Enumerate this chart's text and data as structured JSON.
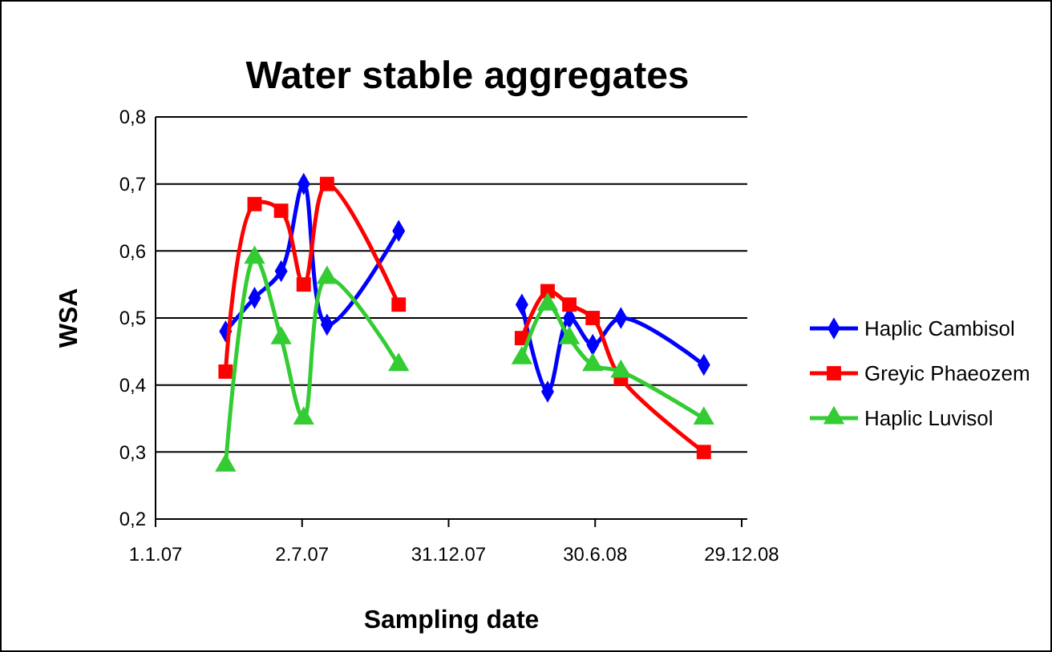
{
  "chart_data": {
    "type": "line",
    "title": "Water stable aggregates",
    "xlabel": "Sampling date",
    "ylabel": "WSA",
    "x": [
      "2007-03-29",
      "2007-05-04",
      "2007-06-06",
      "2007-07-04",
      "2007-08-02",
      "2007-10-30",
      "2008-01-15",
      "2008-03-31",
      "2008-05-02",
      "2008-05-29",
      "2008-06-27",
      "2008-08-01",
      "2008-11-12"
    ],
    "series": [
      {
        "name": "Haplic Cambisol",
        "color": "#0000ff",
        "marker": "diamond",
        "values": [
          0.48,
          0.53,
          0.57,
          0.7,
          0.49,
          0.63,
          null,
          0.52,
          0.39,
          0.5,
          0.46,
          0.5,
          0.43
        ]
      },
      {
        "name": "Greyic Phaeozem",
        "color": "#ff0000",
        "marker": "square",
        "values": [
          0.42,
          0.67,
          0.66,
          0.55,
          0.7,
          0.52,
          null,
          0.47,
          0.54,
          0.52,
          0.5,
          0.41,
          0.3
        ]
      },
      {
        "name": "Haplic Luvisol",
        "color": "#33cc33",
        "marker": "triangle",
        "values": [
          0.28,
          0.59,
          0.47,
          0.35,
          0.56,
          0.43,
          null,
          0.44,
          0.52,
          0.47,
          0.43,
          0.42,
          0.35
        ]
      }
    ],
    "xlim": [
      "2007-01-01",
      "2009-01-05"
    ],
    "xticks": [
      {
        "value": "2007-01-01",
        "label": "1.1.07"
      },
      {
        "value": "2007-07-02",
        "label": "2.7.07"
      },
      {
        "value": "2007-12-31",
        "label": "31.12.07"
      },
      {
        "value": "2008-06-30",
        "label": "30.6.08"
      },
      {
        "value": "2008-12-29",
        "label": "29.12.08"
      }
    ],
    "ylim": [
      0.2,
      0.8
    ],
    "yticks": [
      {
        "value": 0.2,
        "label": "0,2"
      },
      {
        "value": 0.3,
        "label": "0,3"
      },
      {
        "value": 0.4,
        "label": "0,4"
      },
      {
        "value": 0.5,
        "label": "0,5"
      },
      {
        "value": 0.6,
        "label": "0,6"
      },
      {
        "value": 0.7,
        "label": "0,7"
      },
      {
        "value": 0.8,
        "label": "0,8"
      }
    ],
    "grid": "y",
    "legend": "right"
  }
}
